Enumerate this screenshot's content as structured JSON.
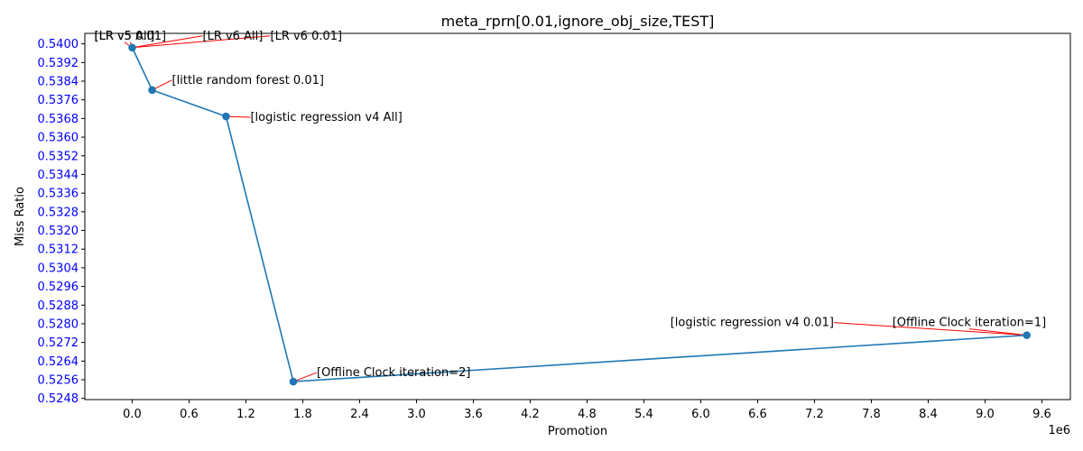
{
  "chart_data": {
    "type": "line",
    "title": "meta_rprn[0.01,ignore_obj_size,TEST]",
    "xlabel": "Promotion",
    "ylabel": "Miss Ratio",
    "x_offset_label": "1e6",
    "xlim": [
      -500000,
      9900000
    ],
    "ylim": [
      0.52475,
      0.54045
    ],
    "x_ticks": [
      0,
      600000,
      1200000,
      1800000,
      2400000,
      3000000,
      3600000,
      4200000,
      4800000,
      5400000,
      6000000,
      6600000,
      7200000,
      7800000,
      8400000,
      9000000,
      9600000
    ],
    "x_tick_labels": [
      "0.0",
      "0.6",
      "1.2",
      "1.8",
      "2.4",
      "3.0",
      "3.6",
      "4.2",
      "4.8",
      "5.4",
      "6.0",
      "6.6",
      "7.2",
      "7.8",
      "8.4",
      "9.0",
      "9.6"
    ],
    "y_ticks": [
      0.5248,
      0.5256,
      0.5264,
      0.5272,
      0.528,
      0.5288,
      0.5296,
      0.5304,
      0.5312,
      0.532,
      0.5328,
      0.5336,
      0.5344,
      0.5352,
      0.536,
      0.5368,
      0.5376,
      0.5384,
      0.5392,
      0.54
    ],
    "y_tick_labels": [
      "0.5248",
      "0.5256",
      "0.5264",
      "0.5272",
      "0.5280",
      "0.5288",
      "0.5296",
      "0.5304",
      "0.5312",
      "0.5320",
      "0.5328",
      "0.5336",
      "0.5344",
      "0.5352",
      "0.5360",
      "0.5368",
      "0.5376",
      "0.5384",
      "0.5392",
      "0.5400"
    ],
    "line_color": "#1f77b4",
    "annotation_arrow_color": "#ff0000",
    "y_tick_label_color": "#0000ff",
    "grid": false,
    "points": [
      {
        "x": 0,
        "y": 0.53984
      },
      {
        "x": 210000,
        "y": 0.53802
      },
      {
        "x": 990000,
        "y": 0.53689
      },
      {
        "x": 1700000,
        "y": 0.52552
      },
      {
        "x": 9440000,
        "y": 0.52751
      }
    ],
    "annotations": [
      {
        "text": "[LR v5 All]",
        "point": 0,
        "dx": -42,
        "dy": -9,
        "anchor": "start"
      },
      {
        "text": "[LR v5 0.01]",
        "point": 0,
        "dx": -42,
        "dy": -9,
        "anchor": "start"
      },
      {
        "text": "[LR v6 All]",
        "point": 0,
        "dx": 78,
        "dy": -9,
        "anchor": "start"
      },
      {
        "text": "[LR v6 0.01]",
        "point": 0,
        "dx": 153,
        "dy": -9,
        "anchor": "start"
      },
      {
        "text": "[little random forest 0.01]",
        "point": 1,
        "dx": 22,
        "dy": -7,
        "anchor": "start"
      },
      {
        "text": "[logistic regression v4 All]",
        "point": 2,
        "dx": 27,
        "dy": 5,
        "anchor": "start"
      },
      {
        "text": "[Offline Clock iteration=2]",
        "point": 3,
        "dx": 26,
        "dy": -6,
        "anchor": "start"
      },
      {
        "text": "[logistic regression v4 0.01]",
        "point": 4,
        "dx": -395,
        "dy": -10,
        "anchor": "start"
      },
      {
        "text": "[Offline Clock iteration=1]",
        "point": 4,
        "dx": -149,
        "dy": -10,
        "anchor": "start"
      }
    ]
  }
}
